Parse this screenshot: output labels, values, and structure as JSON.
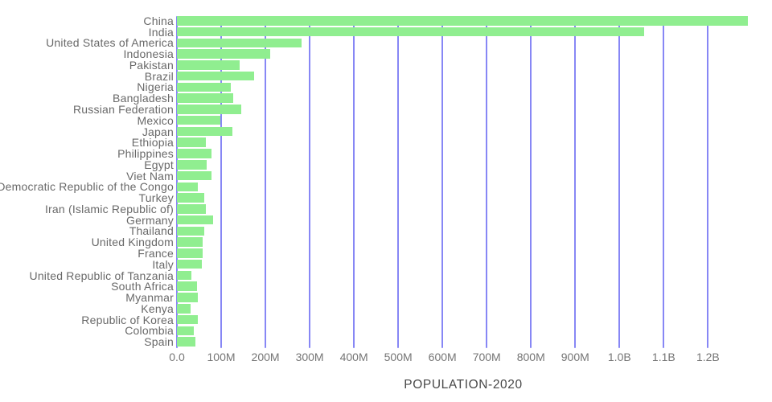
{
  "chart_data": {
    "type": "bar",
    "orientation": "horizontal",
    "title": "POPULATION-2020",
    "series_name": "population",
    "categories": [
      "China",
      "India",
      "United States of America",
      "Indonesia",
      "Pakistan",
      "Brazil",
      "Nigeria",
      "Bangladesh",
      "Russian Federation",
      "Mexico",
      "Japan",
      "Ethiopia",
      "Philippines",
      "Egypt",
      "Viet Nam",
      "Democratic Republic of the Congo",
      "Turkey",
      "Iran (Islamic Republic of)",
      "Germany",
      "Thailand",
      "United Kingdom",
      "France",
      "Italy",
      "United Republic of Tanzania",
      "South Africa",
      "Myanmar",
      "Kenya",
      "Republic of Korea",
      "Colombia",
      "Spain"
    ],
    "values_millions": [
      1290,
      1056,
      282,
      211,
      142,
      175,
      122,
      128,
      146,
      98,
      126,
      66,
      78,
      68,
      79,
      48,
      62,
      65,
      82,
      61,
      59,
      59,
      57,
      33,
      45,
      47,
      31,
      47,
      39,
      41
    ],
    "x_tick_labels": [
      "0.0",
      "100M",
      "200M",
      "300M",
      "400M",
      "500M",
      "600M",
      "700M",
      "800M",
      "900M",
      "1.0B",
      "1.1B",
      "1.2B"
    ],
    "x_tick_values_millions": [
      0,
      100,
      200,
      300,
      400,
      500,
      600,
      700,
      800,
      900,
      1000,
      1100,
      1200
    ],
    "xlim_millions": [
      0,
      1300
    ],
    "grid": true,
    "legend": false,
    "colors": {
      "bar": "#90ee90",
      "gridline": "#8787f5",
      "category_label": "#696969",
      "tick_label": "#757575",
      "title": "#484848"
    }
  }
}
